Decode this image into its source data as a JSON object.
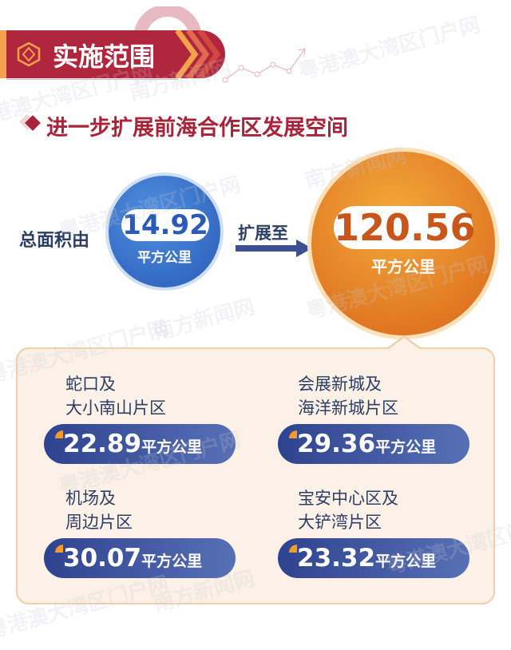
{
  "header": {
    "title": "实施范围",
    "subtitle": "进一步扩展前海合作区发展空间"
  },
  "summary": {
    "from_label": "总面积由",
    "from_value": "14.92",
    "from_unit": "平方公里",
    "to_label": "扩展至",
    "to_value": "120.56",
    "to_unit": "平方公里"
  },
  "districts": [
    {
      "line1": "蛇口及",
      "line2": "大小南山片区",
      "value": "22.89",
      "unit": "平方公里"
    },
    {
      "line1": "会展新城及",
      "line2": "海洋新城片区",
      "value": "29.36",
      "unit": "平方公里"
    },
    {
      "line1": "机场及",
      "line2": "周边片区",
      "value": "30.07",
      "unit": "平方公里"
    },
    {
      "line1": "宝安中心区及",
      "line2": "大铲湾片区",
      "value": "23.32",
      "unit": "平方公里"
    }
  ],
  "watermarks": [
    "粤港澳大湾区门户网",
    "南方新闻网"
  ],
  "colors": {
    "banner": "#b0263d",
    "blue": "#2a5bb6",
    "orange": "#d9641a",
    "pill": "#2e438f",
    "panel": "#fcf1e7"
  }
}
